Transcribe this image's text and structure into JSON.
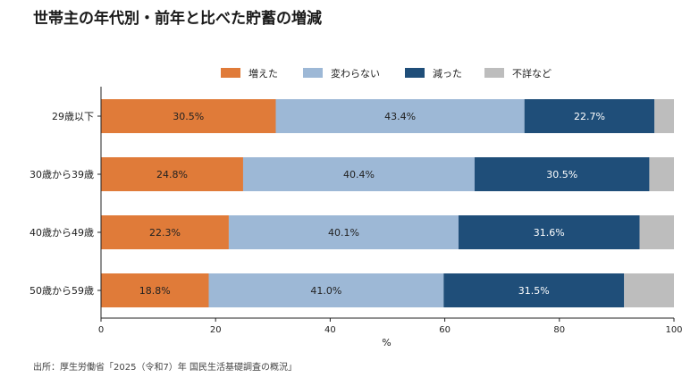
{
  "title": "世帯主の年代別・前年と比べた貯蓄の増減",
  "source": "出所：厚生労働省「2025（令和7）年 国民生活基礎調査の概況」",
  "colors": {
    "増えた": "#e07b39",
    "変わらない": "#9db8d6",
    "減った": "#1f4e79",
    "不詳など": "#bdbdbd"
  },
  "chart_data": {
    "type": "bar",
    "orientation": "horizontal",
    "stacked": true,
    "categories": [
      "29歳以下",
      "30歳から39歳",
      "40歳から49歳",
      "50歳から59歳"
    ],
    "series": [
      {
        "name": "増えた",
        "values": [
          30.5,
          24.8,
          22.3,
          18.8
        ]
      },
      {
        "name": "変わらない",
        "values": [
          43.4,
          40.4,
          40.1,
          41.0
        ]
      },
      {
        "name": "減った",
        "values": [
          22.7,
          30.5,
          31.6,
          31.5
        ]
      },
      {
        "name": "不詳など",
        "values": [
          3.4,
          4.3,
          6.0,
          8.7
        ]
      }
    ],
    "data_labels": [
      [
        "30.5%",
        "43.4%",
        "22.7%"
      ],
      [
        "24.8%",
        "40.4%",
        "30.5%"
      ],
      [
        "22.3%",
        "40.1%",
        "31.6%"
      ],
      [
        "18.8%",
        "41.0%",
        "31.5%"
      ]
    ],
    "xlabel": "%",
    "ylabel": "",
    "xlim": [
      0,
      100
    ],
    "xticks": [
      "0",
      "20",
      "40",
      "60",
      "80",
      "100"
    ],
    "grid": false,
    "legend_position": "top-right"
  }
}
